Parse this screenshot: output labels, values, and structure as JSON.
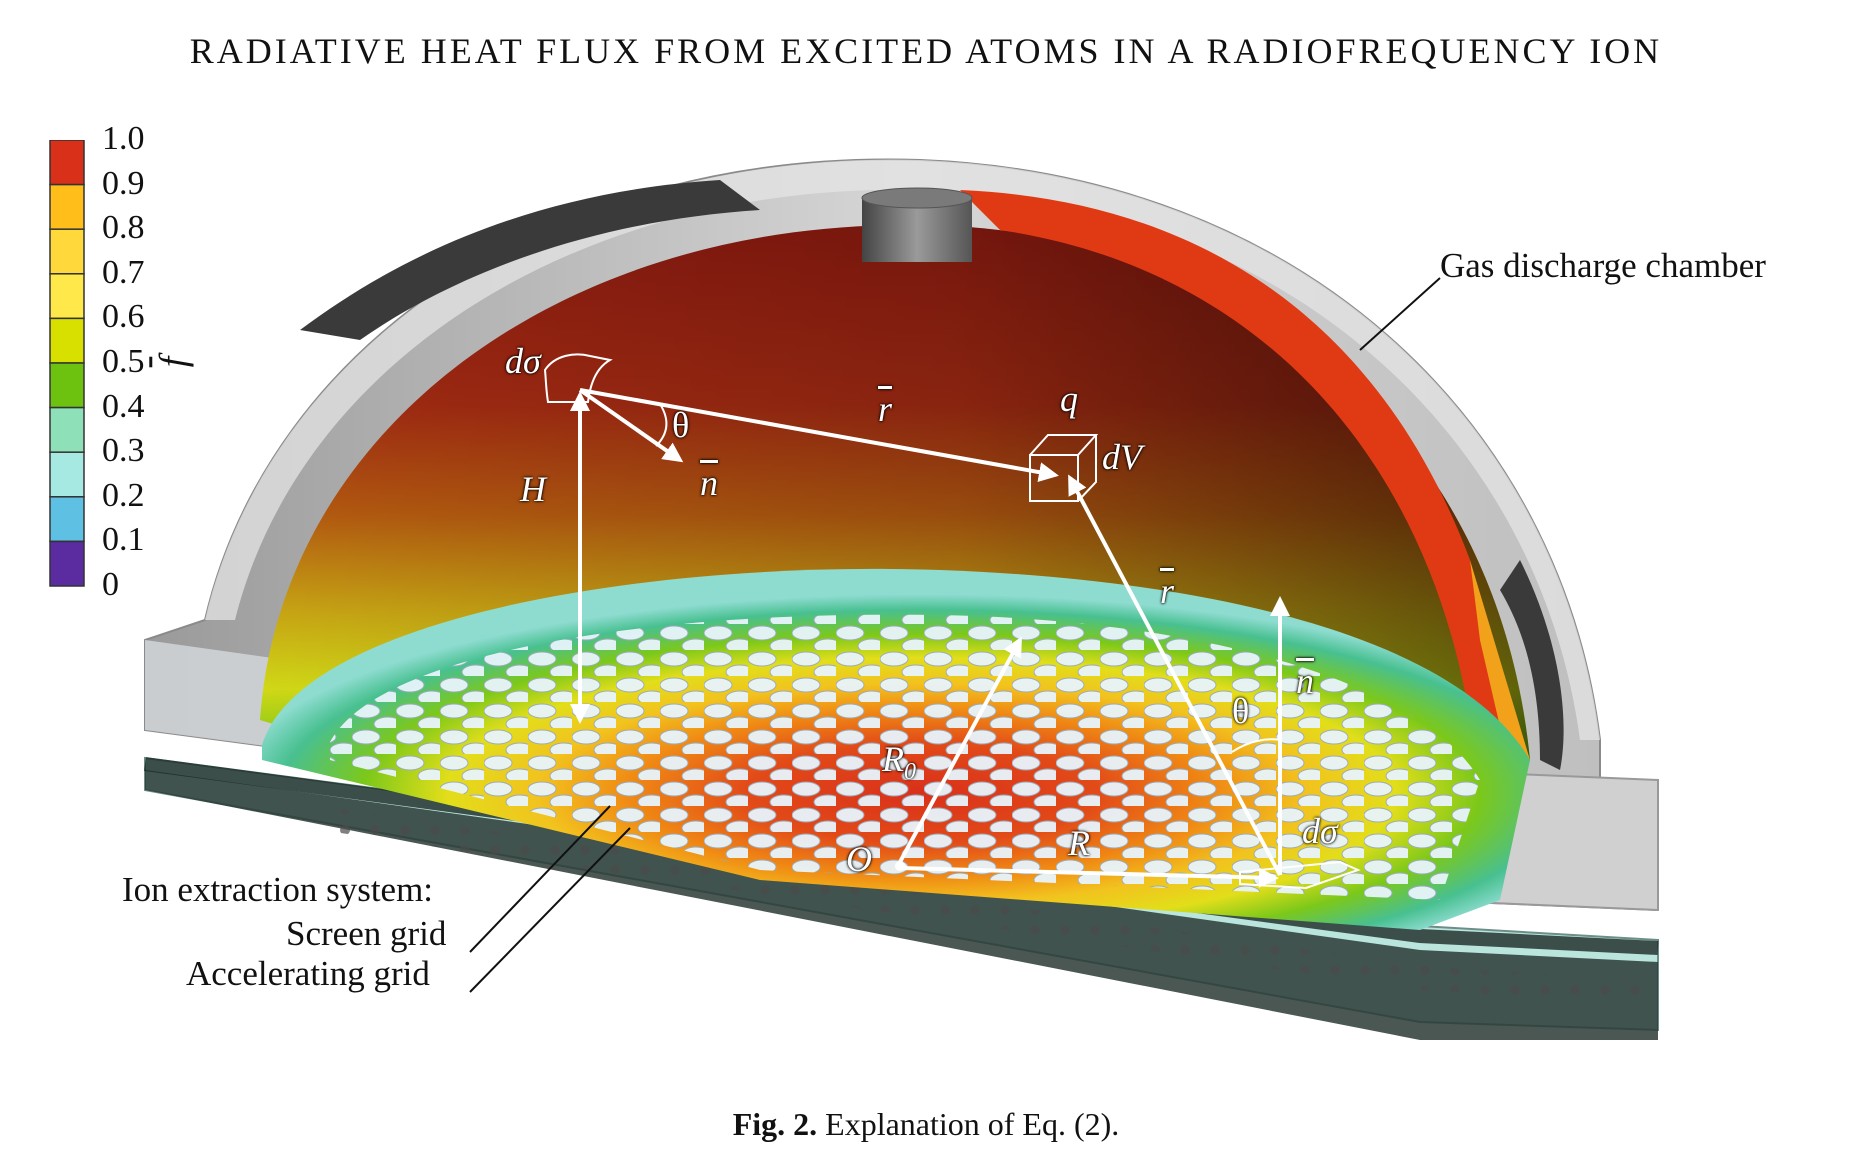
{
  "header": {
    "title": "RADIATIVE HEAT FLUX FROM EXCITED ATOMS IN A RADIOFREQUENCY ION"
  },
  "legend": {
    "symbol": "f",
    "ticks": [
      "1.0",
      "0.9",
      "0.8",
      "0.7",
      "0.6",
      "0.5",
      "0.4",
      "0.3",
      "0.2",
      "0.1",
      "0"
    ],
    "colors": [
      "#d9301a",
      "#ffbe1a",
      "#ffd93b",
      "#ffe94a",
      "#d8e000",
      "#6cc20f",
      "#8ee0b8",
      "#a6e8e2",
      "#5ec0e2",
      "#5b2ca0"
    ]
  },
  "labels": {
    "chamber": "Gas discharge chamber",
    "ion_extraction": "Ion extraction system:",
    "screen_grid": "Screen grid",
    "accelerating_grid": "Accelerating grid"
  },
  "symbols": {
    "dsigma_top": "dσ",
    "theta_top": "θ",
    "n_top": "n",
    "H": "H",
    "r_top": "r",
    "q": "q",
    "dV": "dV",
    "r_right": "r",
    "n_right": "n",
    "theta_right": "θ",
    "R0": "R",
    "R0_sub": "0",
    "R": "R",
    "O": "O",
    "dsigma_bottom": "dσ"
  },
  "caption": {
    "label": "Fig. 2.",
    "text": "Explanation of Eq. (2)."
  }
}
